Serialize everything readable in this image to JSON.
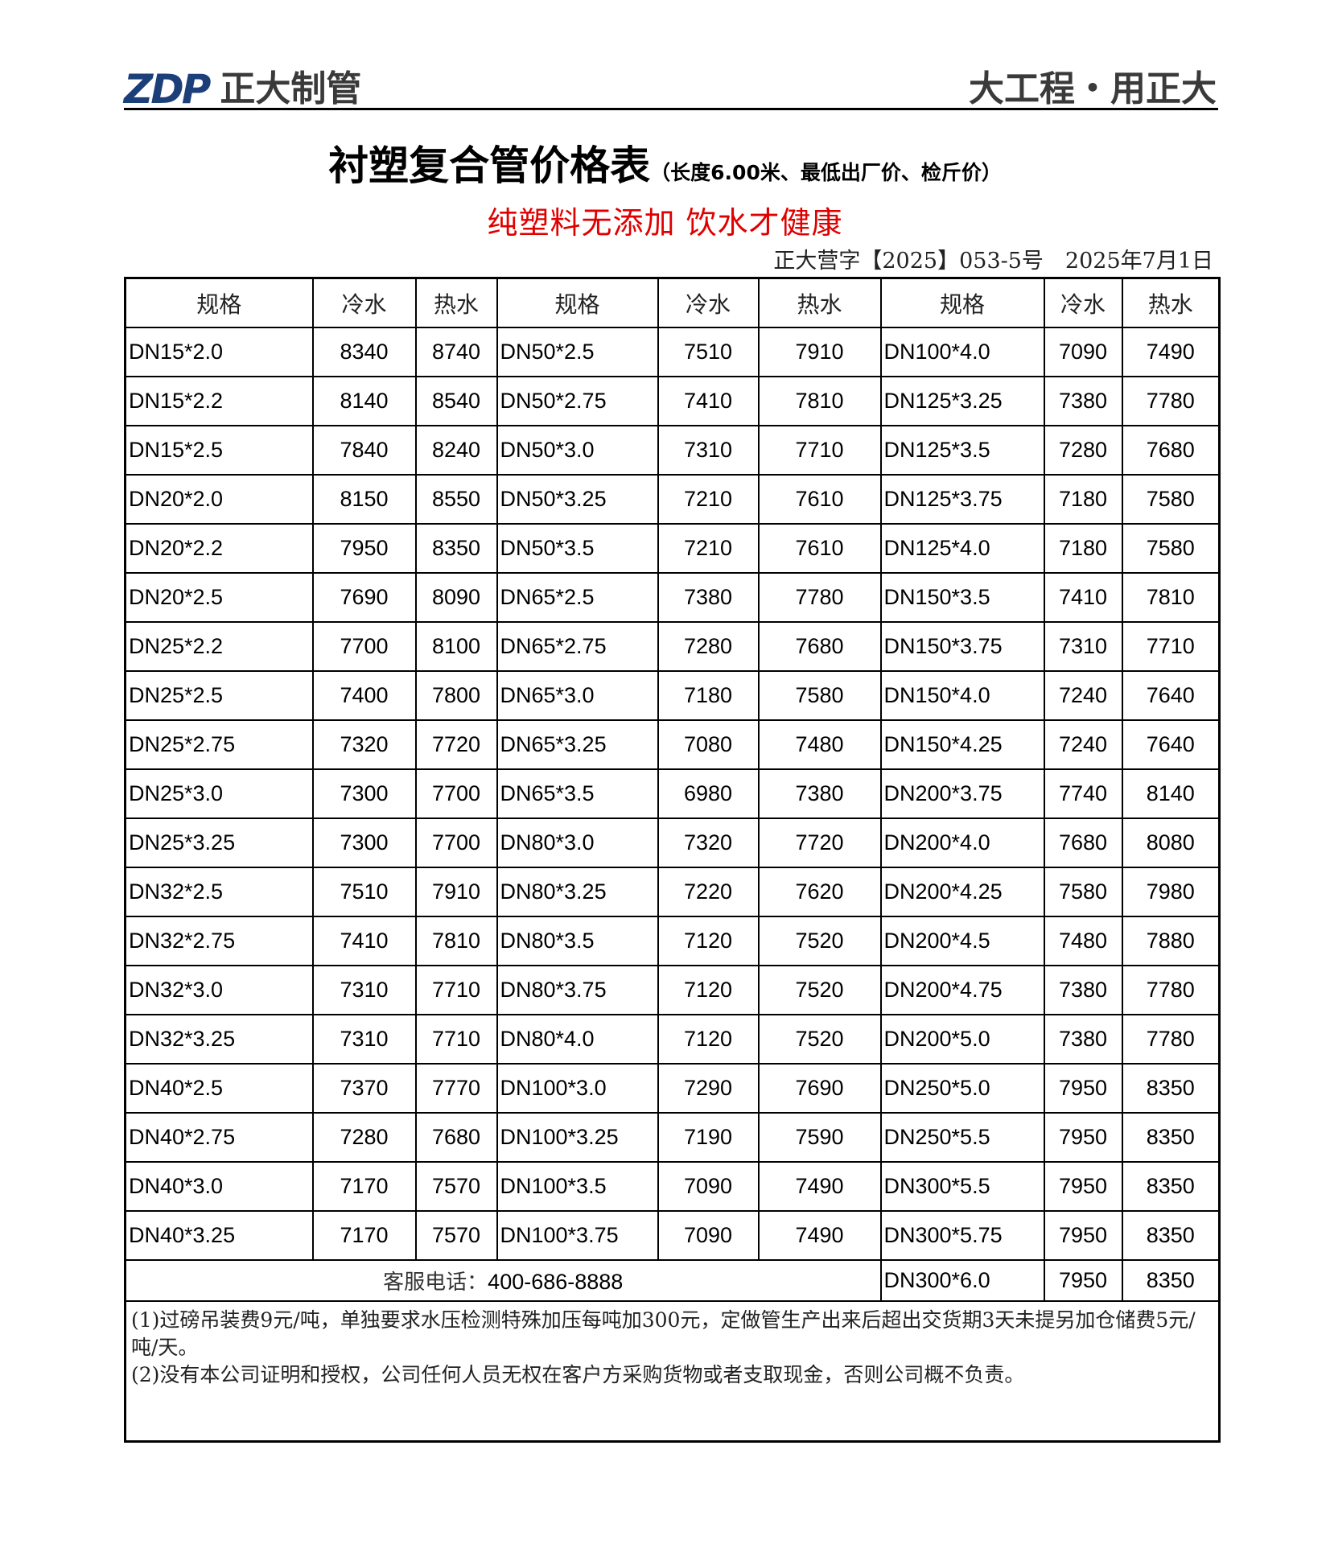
{
  "header": {
    "logo_mark": "ZDP",
    "logo_name": "正大制管",
    "slogan": "大工程・用正大",
    "brand_color": "#1c3f7a"
  },
  "title": {
    "main": "衬塑复合管价格表",
    "sub": "（长度6.00米、最低出厂价、检斤价）"
  },
  "red_slogan": "纯塑料无添加  饮水才健康",
  "red_color": "#e00000",
  "doc_number": "正大营字【2025】053-5号　2025年7月1日",
  "table": {
    "headers": [
      "规格",
      "冷水",
      "热水",
      "规格",
      "冷水",
      "热水",
      "规格",
      "冷水",
      "热水"
    ],
    "rows": [
      [
        "DN15*2.0",
        "8340",
        "8740",
        "DN50*2.5",
        "7510",
        "7910",
        "DN100*4.0",
        "7090",
        "7490"
      ],
      [
        "DN15*2.2",
        "8140",
        "8540",
        "DN50*2.75",
        "7410",
        "7810",
        "DN125*3.25",
        "7380",
        "7780"
      ],
      [
        "DN15*2.5",
        "7840",
        "8240",
        "DN50*3.0",
        "7310",
        "7710",
        "DN125*3.5",
        "7280",
        "7680"
      ],
      [
        "DN20*2.0",
        "8150",
        "8550",
        "DN50*3.25",
        "7210",
        "7610",
        "DN125*3.75",
        "7180",
        "7580"
      ],
      [
        "DN20*2.2",
        "7950",
        "8350",
        "DN50*3.5",
        "7210",
        "7610",
        "DN125*4.0",
        "7180",
        "7580"
      ],
      [
        "DN20*2.5",
        "7690",
        "8090",
        "DN65*2.5",
        "7380",
        "7780",
        "DN150*3.5",
        "7410",
        "7810"
      ],
      [
        "DN25*2.2",
        "7700",
        "8100",
        "DN65*2.75",
        "7280",
        "7680",
        "DN150*3.75",
        "7310",
        "7710"
      ],
      [
        "DN25*2.5",
        "7400",
        "7800",
        "DN65*3.0",
        "7180",
        "7580",
        "DN150*4.0",
        "7240",
        "7640"
      ],
      [
        "DN25*2.75",
        "7320",
        "7720",
        "DN65*3.25",
        "7080",
        "7480",
        "DN150*4.25",
        "7240",
        "7640"
      ],
      [
        "DN25*3.0",
        "7300",
        "7700",
        "DN65*3.5",
        "6980",
        "7380",
        "DN200*3.75",
        "7740",
        "8140"
      ],
      [
        "DN25*3.25",
        "7300",
        "7700",
        "DN80*3.0",
        "7320",
        "7720",
        "DN200*4.0",
        "7680",
        "8080"
      ],
      [
        "DN32*2.5",
        "7510",
        "7910",
        "DN80*3.25",
        "7220",
        "7620",
        "DN200*4.25",
        "7580",
        "7980"
      ],
      [
        "DN32*2.75",
        "7410",
        "7810",
        "DN80*3.5",
        "7120",
        "7520",
        "DN200*4.5",
        "7480",
        "7880"
      ],
      [
        "DN32*3.0",
        "7310",
        "7710",
        "DN80*3.75",
        "7120",
        "7520",
        "DN200*4.75",
        "7380",
        "7780"
      ],
      [
        "DN32*3.25",
        "7310",
        "7710",
        "DN80*4.0",
        "7120",
        "7520",
        "DN200*5.0",
        "7380",
        "7780"
      ],
      [
        "DN40*2.5",
        "7370",
        "7770",
        "DN100*3.0",
        "7290",
        "7690",
        "DN250*5.0",
        "7950",
        "8350"
      ],
      [
        "DN40*2.75",
        "7280",
        "7680",
        "DN100*3.25",
        "7190",
        "7590",
        "DN250*5.5",
        "7950",
        "8350"
      ],
      [
        "DN40*3.0",
        "7170",
        "7570",
        "DN100*3.5",
        "7090",
        "7490",
        "DN300*5.5",
        "7950",
        "8350"
      ],
      [
        "DN40*3.25",
        "7170",
        "7570",
        "DN100*3.75",
        "7090",
        "7490",
        "DN300*5.75",
        "7950",
        "8350"
      ]
    ],
    "footer": {
      "phone_label": "客服电话：",
      "phone": "400-686-8888",
      "last_row": [
        "DN300*6.0",
        "7950",
        "8350"
      ]
    },
    "notes": [
      "(1)过磅吊装费9元/吨，单独要求水压检测特殊加压每吨加300元，定做管生产出来后超出交货期3天未提另加仓储费5元/吨/天。",
      "(2)没有本公司证明和授权，公司任何人员无权在客户方采购货物或者支取现金，否则公司概不负责。"
    ]
  }
}
